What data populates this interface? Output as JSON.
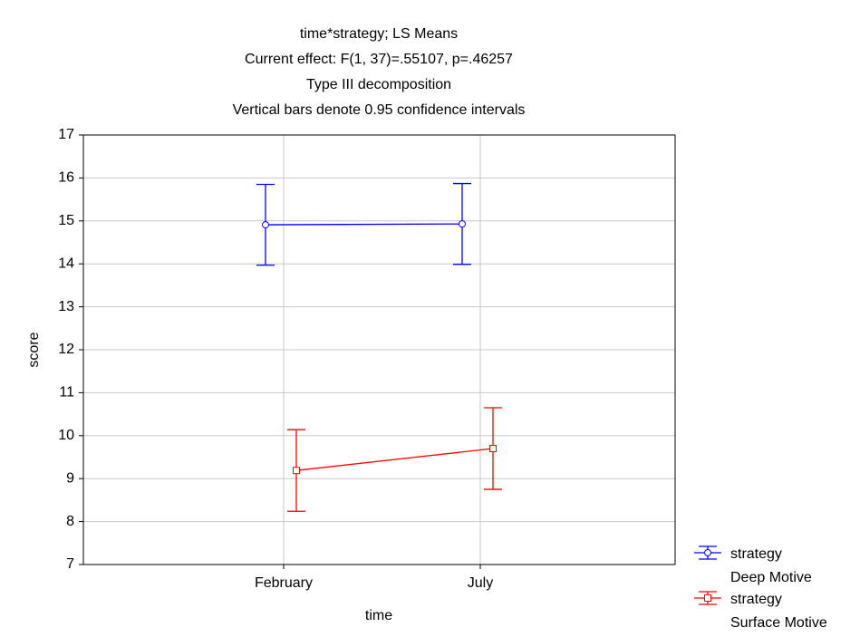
{
  "chart_data": {
    "type": "line",
    "title": "time*strategy; LS Means",
    "subtitle": [
      "Current effect: F(1, 37)=.55107, p=.46257",
      "Type III decomposition",
      "Vertical bars denote 0.95 confidence intervals"
    ],
    "x_label": "time",
    "y_label": "score",
    "categories": [
      "February",
      "July"
    ],
    "legend_title": "strategy",
    "series": [
      {
        "name": "Deep Motive",
        "color": "#0000ff",
        "marker": "circle",
        "values": [
          14.91,
          14.93
        ],
        "errors": [
          0.94,
          0.94
        ]
      },
      {
        "name": "Surface Motive",
        "color": "#ff0000",
        "marker": "square",
        "values": [
          9.19,
          9.7
        ],
        "errors": [
          0.95,
          0.95
        ]
      }
    ],
    "ylim": [
      7,
      17
    ],
    "yticks": [
      7,
      8,
      9,
      10,
      11,
      12,
      13,
      14,
      15,
      16,
      17
    ],
    "grid": true,
    "legend": "lower right"
  }
}
